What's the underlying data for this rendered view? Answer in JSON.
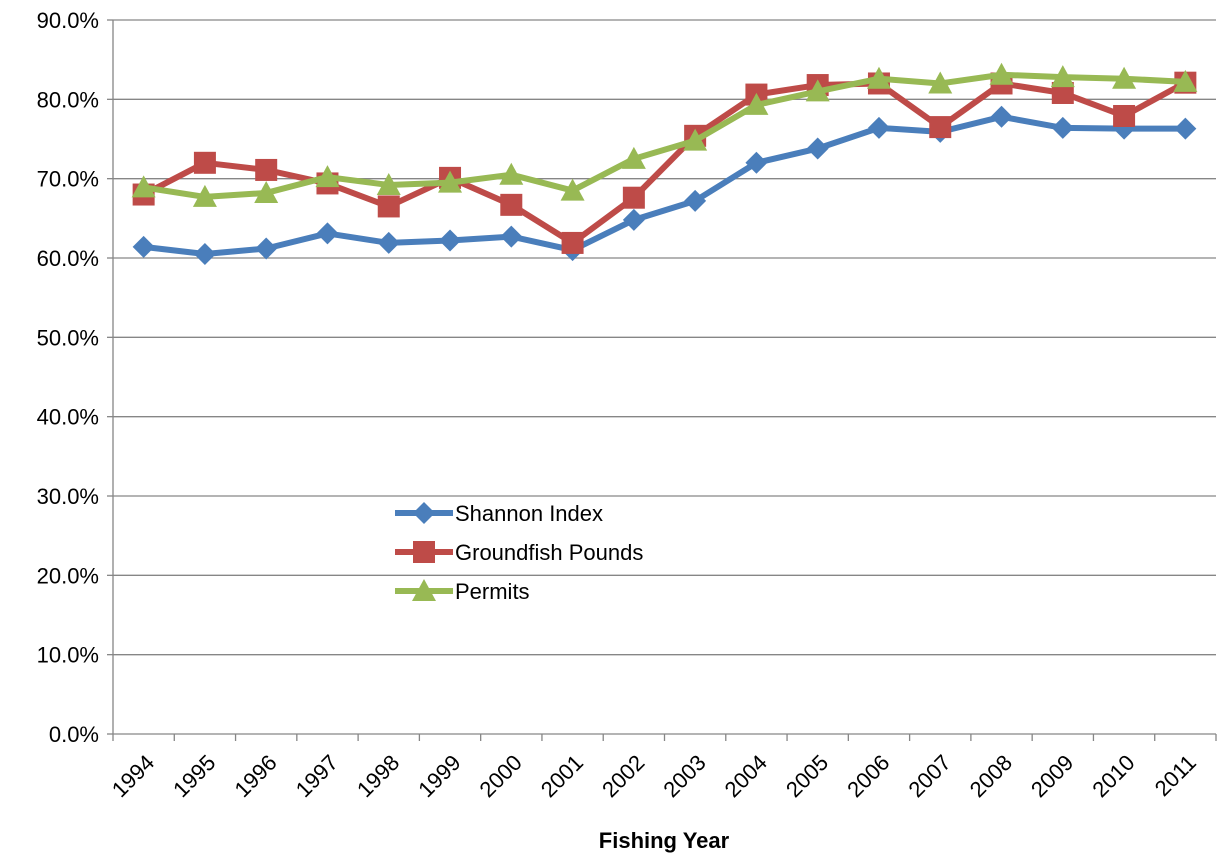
{
  "chart_data": {
    "type": "line",
    "x_label": "Fishing Year",
    "categories": [
      "1994",
      "1995",
      "1996",
      "1997",
      "1998",
      "1999",
      "2000",
      "2001",
      "2002",
      "2003",
      "2004",
      "2005",
      "2006",
      "2007",
      "2008",
      "2009",
      "2010",
      "2011"
    ],
    "series": [
      {
        "name": "Shannon Index",
        "color": "#4a7ebb",
        "marker": "diamond",
        "values": [
          61.4,
          60.5,
          61.2,
          63.1,
          61.9,
          62.2,
          62.7,
          61.0,
          64.8,
          67.2,
          72.0,
          73.8,
          76.4,
          75.9,
          77.8,
          76.4,
          76.3,
          76.3
        ]
      },
      {
        "name": "Groundfish Pounds",
        "color": "#be4b48",
        "marker": "square",
        "values": [
          68.0,
          72.0,
          71.1,
          69.4,
          66.5,
          70.1,
          66.7,
          61.9,
          67.6,
          75.4,
          80.6,
          81.8,
          82.0,
          76.5,
          82.0,
          80.8,
          77.9,
          82.1
        ]
      },
      {
        "name": "Permits",
        "color": "#98b954",
        "marker": "triangle",
        "values": [
          68.9,
          67.7,
          68.2,
          70.2,
          69.2,
          69.5,
          70.5,
          68.5,
          72.5,
          74.8,
          79.3,
          81.0,
          82.6,
          82.0,
          83.1,
          82.8,
          82.6,
          82.2
        ]
      }
    ],
    "ylim": [
      0,
      90
    ],
    "yticks": [
      {
        "value": 0,
        "label": "0.0%"
      },
      {
        "value": 10,
        "label": "10.0%"
      },
      {
        "value": 20,
        "label": "20.0%"
      },
      {
        "value": 30,
        "label": "30.0%"
      },
      {
        "value": 40,
        "label": "40.0%"
      },
      {
        "value": 50,
        "label": "50.0%"
      },
      {
        "value": 60,
        "label": "60.0%"
      },
      {
        "value": 70,
        "label": "70.0%"
      },
      {
        "value": 80,
        "label": "80.0%"
      },
      {
        "value": 90,
        "label": "90.0%"
      }
    ],
    "grid": true,
    "legend": "center-left"
  }
}
